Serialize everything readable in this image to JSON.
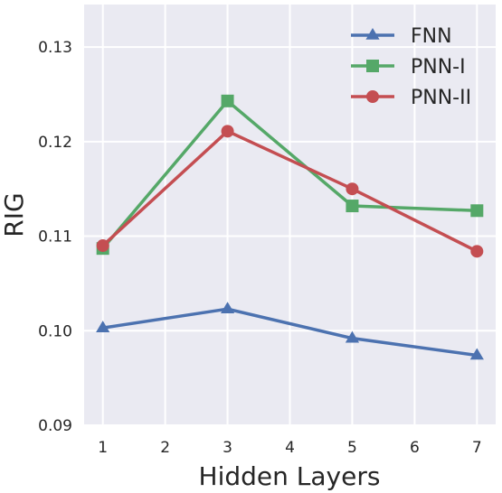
{
  "chart_data": {
    "type": "line",
    "xlabel": "Hidden Layers",
    "ylabel": "RIG",
    "x": [
      1,
      3,
      5,
      7
    ],
    "xlim": [
      0.7,
      7.3
    ],
    "ylim": [
      0.09,
      0.1345
    ],
    "xticks": [
      1,
      2,
      3,
      4,
      5,
      6,
      7
    ],
    "xtick_labels": [
      "1",
      "2",
      "3",
      "4",
      "5",
      "6",
      "7"
    ],
    "yticks": [
      0.09,
      0.1,
      0.11,
      0.12,
      0.13
    ],
    "ytick_labels": [
      "0.09",
      "0.10",
      "0.11",
      "0.12",
      "0.13"
    ],
    "grid": true,
    "legend_position": "top-right",
    "series": [
      {
        "name": "FNN",
        "values": [
          0.1003,
          0.1023,
          0.0992,
          0.0974
        ],
        "color": "#4c72b0",
        "marker": "triangle"
      },
      {
        "name": "PNN-I",
        "values": [
          0.1087,
          0.1243,
          0.1132,
          0.1127
        ],
        "color": "#55a868",
        "marker": "square"
      },
      {
        "name": "PNN-II",
        "values": [
          0.109,
          0.1211,
          0.115,
          0.1084
        ],
        "color": "#c44e52",
        "marker": "circle"
      }
    ]
  },
  "style": {
    "plot_background": "#eaeaf2",
    "grid_color": "#ffffff",
    "text_color": "#262626"
  }
}
